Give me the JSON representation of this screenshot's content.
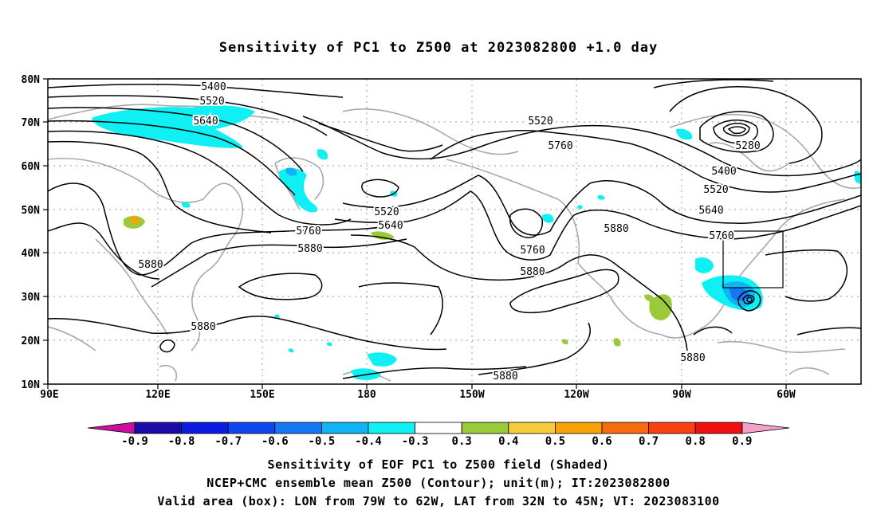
{
  "title": "Sensitivity of PC1 to Z500 at 2023082800 +1.0 day",
  "captions": [
    "Sensitivity of EOF PC1 to Z500 field (Shaded)",
    "NCEP+CMC ensemble mean Z500 (Contour); unit(m); IT:2023082800",
    "Valid area (box): LON from 79W to 62W, LAT from 32N to 45N; VT: 2023083100"
  ],
  "axes": {
    "lon_ticks": [
      "90E",
      "120E",
      "150E",
      "180",
      "150W",
      "120W",
      "90W",
      "60W"
    ],
    "lat_ticks": [
      "10N",
      "20N",
      "30N",
      "40N",
      "50N",
      "60N",
      "70N",
      "80N"
    ]
  },
  "contour_labels": [
    "5400",
    "5520",
    "5640",
    "5520",
    "5760",
    "5280",
    "5400",
    "5520",
    "5640",
    "5760",
    "5520",
    "5640",
    "5760",
    "5880",
    "5880",
    "5760",
    "5880",
    "5880",
    "5880",
    "5880",
    "5880"
  ],
  "colorbar": {
    "colors": [
      "#c8109c",
      "#1a0aa8",
      "#0a1ce0",
      "#1046f0",
      "#1478f4",
      "#10b4f4",
      "#0ef0f4",
      "#ffffff",
      "#9aca3c",
      "#f6cc3c",
      "#f8a20a",
      "#f86a10",
      "#f84010",
      "#f01010",
      "#f4a0c8"
    ],
    "labels": [
      "-0.9",
      "-0.8",
      "-0.7",
      "-0.6",
      "-0.5",
      "-0.4",
      "-0.3",
      "0.3",
      "0.4",
      "0.5",
      "0.6",
      "0.7",
      "0.8",
      "0.9"
    ]
  }
}
